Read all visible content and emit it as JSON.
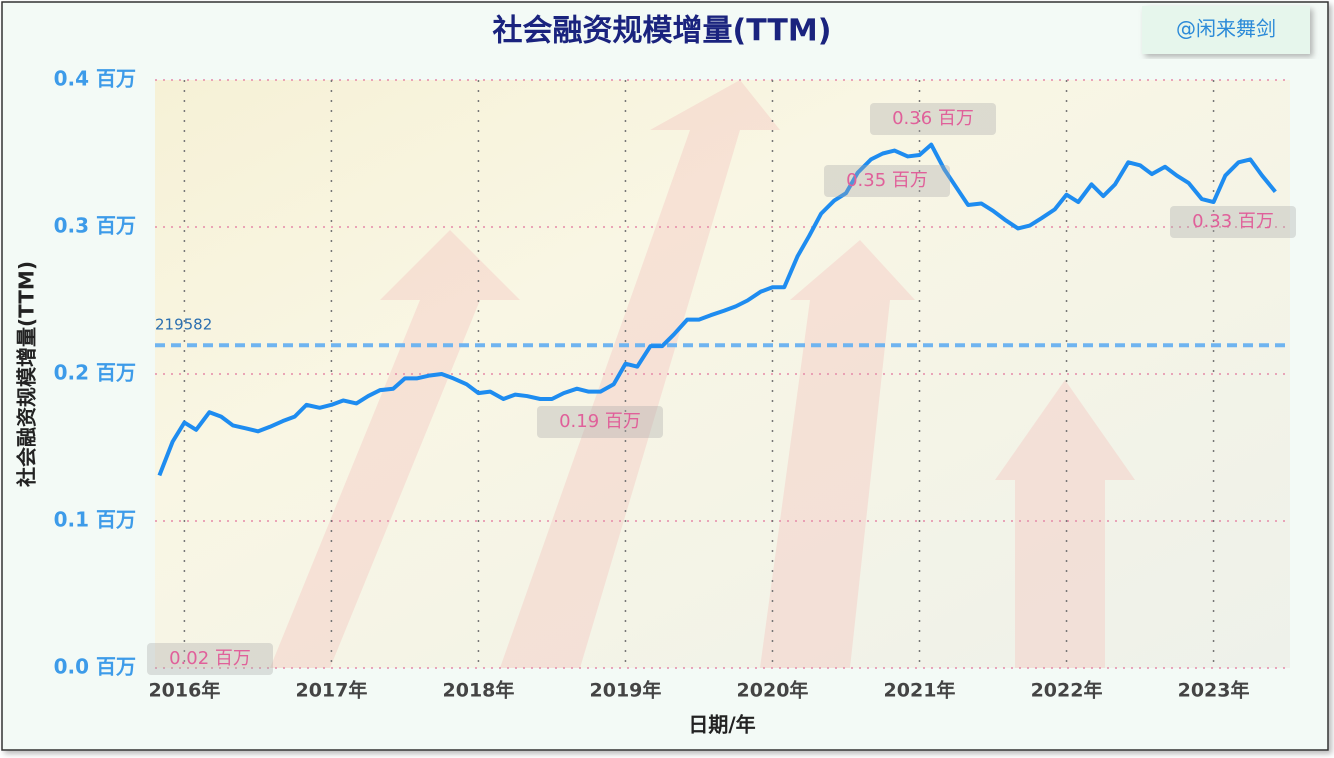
{
  "chart_data": {
    "type": "line",
    "title": "社会融资规模增量(TTM)",
    "watermark": "@闲来舞剑",
    "x_label": "日期/年",
    "y_label": "社会融资规模增量(TTM)",
    "x": [
      2015.83,
      2015.92,
      2016.0,
      2016.08,
      2016.17,
      2016.25,
      2016.33,
      2016.42,
      2016.5,
      2016.58,
      2016.67,
      2016.75,
      2016.83,
      2016.92,
      2017.0,
      2017.08,
      2017.17,
      2017.25,
      2017.33,
      2017.42,
      2017.5,
      2017.58,
      2017.67,
      2017.75,
      2017.83,
      2017.92,
      2018.0,
      2018.08,
      2018.17,
      2018.25,
      2018.33,
      2018.42,
      2018.5,
      2018.58,
      2018.67,
      2018.75,
      2018.83,
      2018.92,
      2019.0,
      2019.08,
      2019.17,
      2019.25,
      2019.33,
      2019.42,
      2019.5,
      2019.58,
      2019.67,
      2019.75,
      2019.83,
      2019.92,
      2020.0,
      2020.08,
      2020.17,
      2020.25,
      2020.33,
      2020.42,
      2020.5,
      2020.58,
      2020.67,
      2020.75,
      2020.83,
      2020.92,
      2021.0,
      2021.08,
      2021.17,
      2021.25,
      2021.33,
      2021.42,
      2021.5,
      2021.58,
      2021.67,
      2021.75,
      2021.83,
      2021.92,
      2022.0,
      2022.08,
      2022.17,
      2022.25,
      2022.33,
      2022.42,
      2022.5,
      2022.58,
      2022.67,
      2022.75,
      2022.83,
      2022.92,
      2023.0,
      2023.08,
      2023.17,
      2023.25,
      2023.33,
      2023.42
    ],
    "series": [
      {
        "color": "#1e8cf0",
        "values": [
          0.131,
          0.154,
          0.167,
          0.162,
          0.174,
          0.171,
          0.165,
          0.163,
          0.161,
          0.164,
          0.168,
          0.171,
          0.179,
          0.177,
          0.179,
          0.182,
          0.18,
          0.185,
          0.189,
          0.19,
          0.197,
          0.197,
          0.199,
          0.2,
          0.197,
          0.193,
          0.187,
          0.188,
          0.183,
          0.186,
          0.185,
          0.183,
          0.183,
          0.187,
          0.19,
          0.188,
          0.188,
          0.193,
          0.207,
          0.205,
          0.219,
          0.219,
          0.227,
          0.237,
          0.237,
          0.24,
          0.243,
          0.246,
          0.25,
          0.256,
          0.259,
          0.259,
          0.28,
          0.294,
          0.309,
          0.318,
          0.323,
          0.337,
          0.346,
          0.35,
          0.352,
          0.348,
          0.349,
          0.356,
          0.339,
          0.327,
          0.315,
          0.316,
          0.311,
          0.305,
          0.299,
          0.301,
          0.306,
          0.312,
          0.322,
          0.317,
          0.329,
          0.321,
          0.329,
          0.344,
          0.342,
          0.336,
          0.341,
          0.335,
          0.33,
          0.319,
          0.317,
          0.335,
          0.344,
          0.346,
          0.335,
          0.324
        ]
      }
    ],
    "xlim": [
      2015.8,
      2023.52
    ],
    "xticks": [
      {
        "value": 2016,
        "label": "2016年"
      },
      {
        "value": 2017,
        "label": "2017年"
      },
      {
        "value": 2018,
        "label": "2018年"
      },
      {
        "value": 2019,
        "label": "2019年"
      },
      {
        "value": 2020,
        "label": "2020年"
      },
      {
        "value": 2021,
        "label": "2021年"
      },
      {
        "value": 2022,
        "label": "2022年"
      },
      {
        "value": 2023,
        "label": "2023年"
      }
    ],
    "ylim": [
      0,
      0.4
    ],
    "yticks": [
      {
        "value": 0,
        "label": "0.0 百万"
      },
      {
        "value": 0.1,
        "label": "0.1 百万"
      },
      {
        "value": 0.2,
        "label": "0.2 百万"
      },
      {
        "value": 0.3,
        "label": "0.3 百万"
      },
      {
        "value": 0.4,
        "label": "0.4 百万"
      }
    ],
    "grid": true,
    "mean_line": {
      "value": 0.219582,
      "label": "219582",
      "color": "#6fb4f0"
    },
    "annotations": [
      "0.36 百万",
      "0.35 百万",
      "0.33 百万",
      "0.19 百万",
      "0.02 百万"
    ]
  }
}
